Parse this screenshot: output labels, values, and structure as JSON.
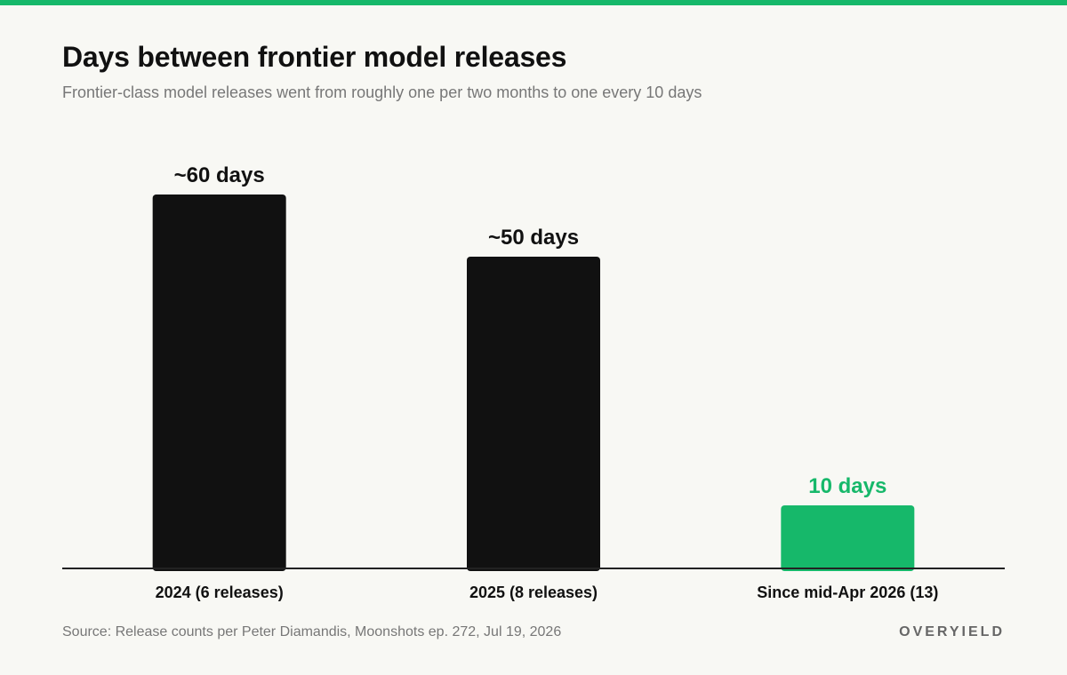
{
  "header": {
    "title": "Days between frontier model releases",
    "subtitle": "Frontier-class model releases went from roughly one per two months to one every 10 days"
  },
  "chart_data": {
    "type": "bar",
    "categories": [
      "2024 (6 releases)",
      "2025 (8 releases)",
      "Since mid-Apr 2026 (13)"
    ],
    "values": [
      60,
      50,
      10
    ],
    "data_labels": [
      "~60 days",
      "~50 days",
      "10 days"
    ],
    "highlight_index": 2,
    "ylim": [
      0,
      60
    ],
    "grid": false,
    "legend": "none"
  },
  "footer": {
    "source": "Source: Release counts per Peter Diamandis, Moonshots ep. 272, Jul 19, 2026",
    "brand": "OVERYIELD"
  },
  "colors": {
    "accent": "#16b86a",
    "bar": "#111111",
    "axis": "#222222",
    "background": "#f8f8f4"
  }
}
